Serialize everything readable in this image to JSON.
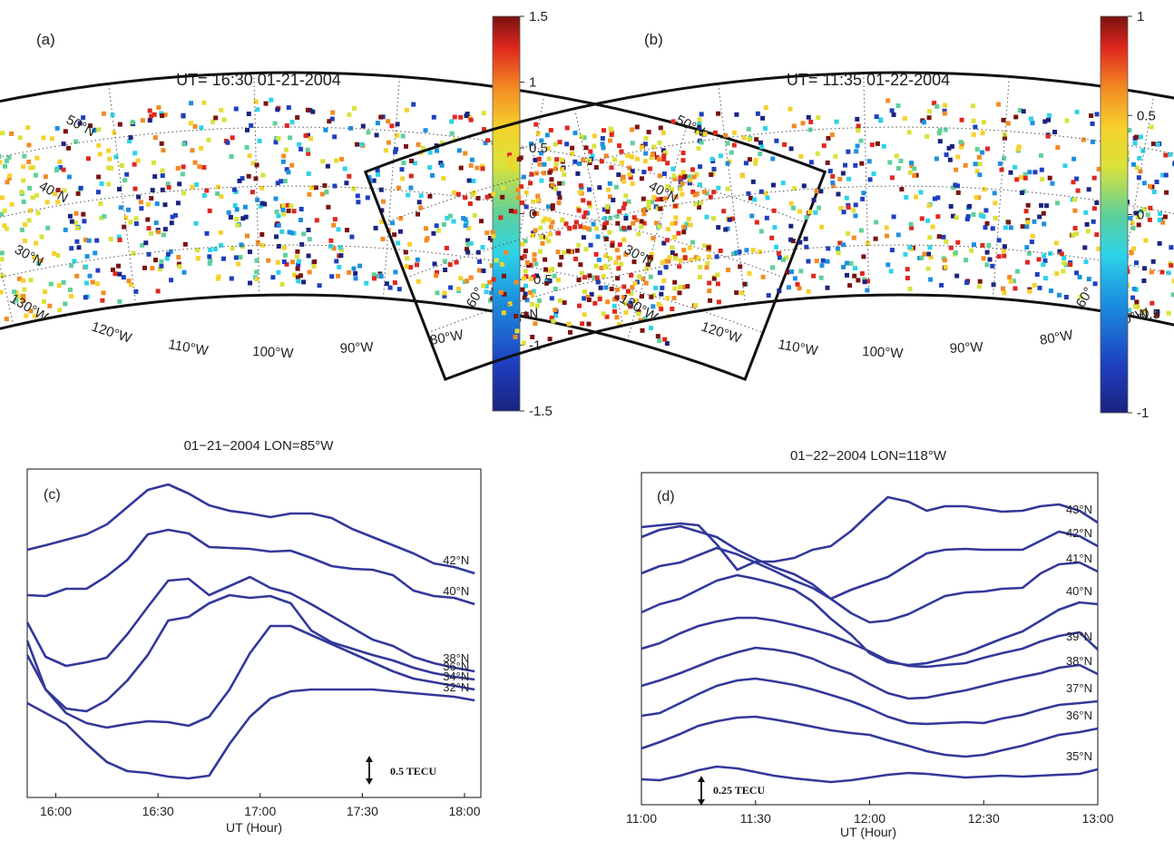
{
  "panels": {
    "a": {
      "panel_label": "(a)",
      "title": "UT= 16:30  01-21-2004",
      "colorbar": {
        "ticks": [
          "1.5",
          "1",
          "0.5",
          "0",
          "-0.5",
          "-1",
          "-1.5"
        ],
        "min": -1.5,
        "max": 1.5
      },
      "lat_labels": [
        "50°N",
        "40°N",
        "30°N"
      ],
      "lon_labels": [
        "130°W",
        "120°W",
        "110°W",
        "100°W",
        "90°W",
        "80°W",
        "70°W",
        "60°"
      ]
    },
    "b": {
      "panel_label": "(b)",
      "title": "UT= 11:35  01-22-2004",
      "colorbar": {
        "ticks": [
          "1",
          "0.5",
          "0",
          "-0.5",
          "-1"
        ],
        "min": -1,
        "max": 1
      },
      "lat_labels": [
        "50°N",
        "40°N",
        "30°N"
      ],
      "lon_labels": [
        "130°W",
        "120°W",
        "110°W",
        "100°W",
        "90°W",
        "80°W",
        "70°W",
        "60°"
      ]
    },
    "c": {
      "panel_label": "(c)",
      "title": "01−21−2004   LON=85°W",
      "xlabel": "UT (Hour)",
      "scale_label": "0.5 TECU"
    },
    "d": {
      "panel_label": "(d)",
      "title": "01−22−2004   LON=118°W",
      "xlabel": "UT (Hour)",
      "scale_label": "0.25 TECU"
    }
  },
  "chart_data": [
    {
      "type": "line",
      "panel": "c",
      "xlabel": "UT (Hour)",
      "x_ticks": [
        "16:00",
        "16:30",
        "17:00",
        "17:30",
        "18:00"
      ],
      "xlim": [
        15.86,
        18.08
      ],
      "x": [
        15.86,
        15.95,
        16.05,
        16.15,
        16.25,
        16.35,
        16.45,
        16.55,
        16.65,
        16.75,
        16.85,
        16.95,
        17.05,
        17.15,
        17.25,
        17.35,
        17.45,
        17.55,
        17.65,
        17.75,
        17.85,
        17.95,
        18.05
      ],
      "series": [
        {
          "name": "42°N",
          "values": [
            606,
            601,
            595,
            589,
            578,
            559,
            540,
            534,
            544,
            557,
            563,
            566,
            570,
            566,
            566,
            571,
            583,
            592,
            601,
            610,
            621,
            625,
            632
          ]
        },
        {
          "name": "40°N",
          "values": [
            656,
            657,
            649,
            649,
            635,
            617,
            589,
            584,
            588,
            603,
            604,
            605,
            608,
            607,
            615,
            624,
            627,
            628,
            634,
            651,
            657,
            659,
            666
          ]
        },
        {
          "name": "38°N",
          "values": [
            686,
            724,
            734,
            730,
            725,
            699,
            669,
            640,
            638,
            656,
            646,
            636,
            648,
            654,
            666,
            679,
            692,
            705,
            712,
            724,
            731,
            736,
            740
          ]
        },
        {
          "name": "36°N",
          "values": [
            722,
            760,
            781,
            784,
            772,
            750,
            722,
            684,
            680,
            665,
            656,
            659,
            657,
            665,
            695,
            708,
            715,
            722,
            728,
            736,
            742,
            746,
            749
          ]
        },
        {
          "name": "34°N",
          "values": [
            706,
            760,
            786,
            797,
            802,
            798,
            795,
            796,
            800,
            790,
            760,
            720,
            690,
            690,
            700,
            710,
            720,
            730,
            740,
            748,
            752,
            756,
            760
          ]
        },
        {
          "name": "32°N",
          "values": [
            775,
            786,
            798,
            820,
            840,
            850,
            852,
            856,
            858,
            855,
            820,
            790,
            770,
            762,
            760,
            760,
            760,
            760,
            762,
            764,
            766,
            768,
            772
          ]
        }
      ]
    },
    {
      "type": "line",
      "panel": "d",
      "xlabel": "UT (Hour)",
      "x_ticks": [
        "11:00",
        "11:30",
        "12:00",
        "12:30",
        "13:00"
      ],
      "xlim": [
        11.0,
        13.0
      ],
      "x": [
        11.0,
        11.08,
        11.17,
        11.25,
        11.33,
        11.42,
        11.5,
        11.58,
        11.67,
        11.75,
        11.83,
        11.92,
        12.0,
        12.08,
        12.17,
        12.25,
        12.33,
        12.42,
        12.5,
        12.58,
        12.67,
        12.75,
        12.83,
        12.92,
        13.0
      ],
      "series": [
        {
          "name": "43°N",
          "values": [
            581,
            579,
            577,
            579,
            600,
            628,
            619,
            619,
            615,
            606,
            602,
            585,
            566,
            548,
            553,
            563,
            558,
            558,
            561,
            564,
            563,
            558,
            556,
            563,
            576
          ]
        },
        {
          "name": "42°N",
          "values": [
            592,
            584,
            580,
            586,
            592,
            606,
            616,
            625,
            633,
            644,
            660,
            650,
            643,
            636,
            622,
            610,
            606,
            605,
            606,
            606,
            606,
            596,
            586,
            591,
            602
          ]
        },
        {
          "name": "41°N",
          "values": [
            632,
            624,
            620,
            612,
            604,
            611,
            620,
            629,
            640,
            648,
            660,
            676,
            686,
            684,
            677,
            667,
            657,
            653,
            652,
            649,
            648,
            632,
            622,
            620,
            630
          ]
        },
        {
          "name": "40°N",
          "values": [
            675,
            666,
            660,
            650,
            640,
            634,
            638,
            643,
            650,
            663,
            682,
            700,
            720,
            730,
            733,
            731,
            726,
            720,
            712,
            704,
            696,
            684,
            672,
            664,
            666
          ]
        },
        {
          "name": "39°N",
          "values": [
            715,
            709,
            698,
            690,
            685,
            681,
            681,
            684,
            689,
            694,
            700,
            709,
            718,
            728,
            734,
            735,
            733,
            731,
            725,
            720,
            715,
            707,
            701,
            697,
            716
          ]
        },
        {
          "name": "38°N",
          "values": [
            756,
            750,
            742,
            734,
            726,
            719,
            714,
            716,
            720,
            726,
            735,
            743,
            754,
            764,
            770,
            769,
            765,
            761,
            756,
            751,
            746,
            742,
            736,
            733,
            743
          ]
        },
        {
          "name": "37°N",
          "values": [
            789,
            786,
            775,
            765,
            756,
            750,
            748,
            751,
            755,
            760,
            766,
            773,
            781,
            790,
            797,
            798,
            797,
            796,
            797,
            792,
            788,
            782,
            777,
            775,
            773
          ]
        },
        {
          "name": "36°N",
          "values": [
            825,
            818,
            809,
            800,
            795,
            791,
            790,
            793,
            797,
            801,
            805,
            808,
            810,
            816,
            822,
            828,
            832,
            834,
            832,
            827,
            822,
            816,
            810,
            807,
            803
          ]
        },
        {
          "name": "35°N",
          "values": [
            859,
            860,
            855,
            849,
            845,
            847,
            851,
            855,
            858,
            860,
            862,
            860,
            857,
            854,
            852,
            853,
            855,
            857,
            856,
            855,
            856,
            855,
            854,
            853,
            848
          ]
        }
      ]
    }
  ]
}
